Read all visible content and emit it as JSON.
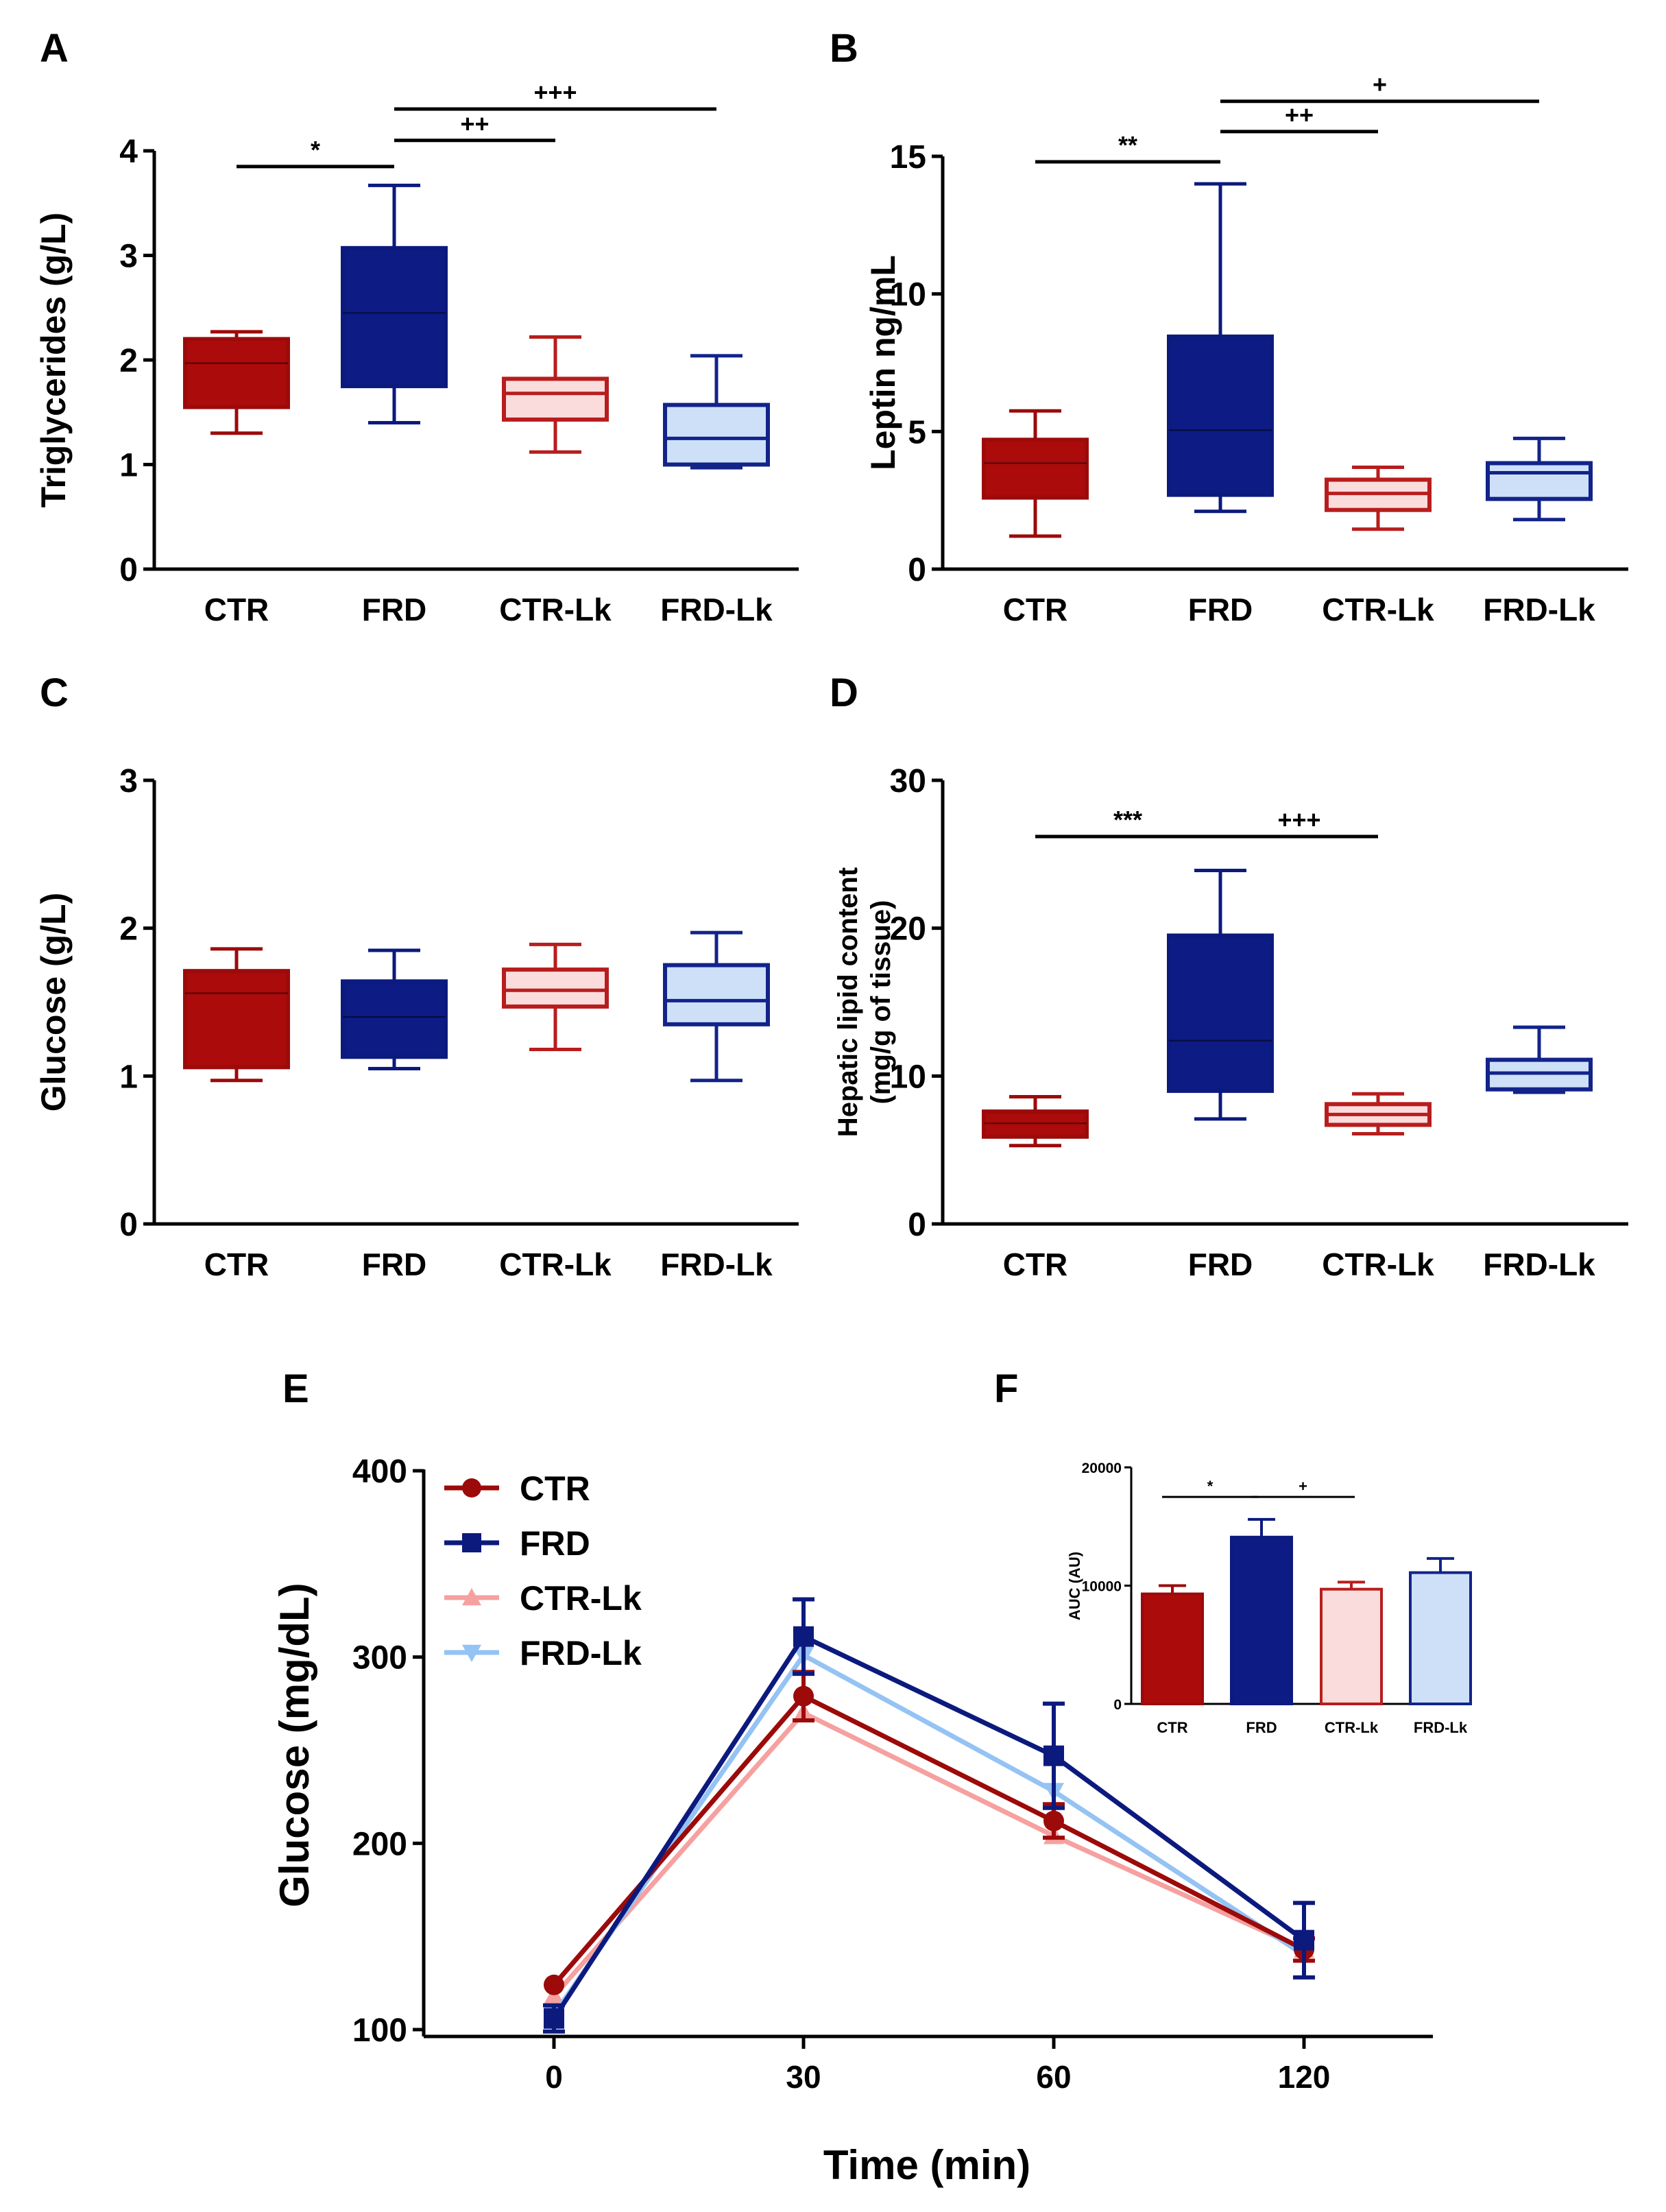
{
  "colors": {
    "ctr": "#9c0a0a",
    "ctr_fill": "#ab0b0b",
    "frd": "#0c1a7e",
    "frd_fill": "#0d1b85",
    "ctrlk": "#b81d1d",
    "ctrlk_fill": "#fbdcdc",
    "ctrlk_line": "#f6a0a0",
    "frdlk": "#12238a",
    "frdlk_fill": "#cde0f8",
    "frdlk_line": "#94c3f4",
    "axis": "#000000"
  },
  "chart_data": [
    {
      "panel": "A",
      "type": "box",
      "ylabel": "Triglycerides (g/L)",
      "ylim": [
        0,
        4
      ],
      "yticks": [
        0,
        1,
        2,
        3,
        4
      ],
      "categories": [
        "CTR",
        "FRD",
        "CTR-Lk",
        "FRD-Lk"
      ],
      "boxes": [
        {
          "min": 1.3,
          "q1": 1.55,
          "median": 1.97,
          "q3": 2.2,
          "max": 2.27
        },
        {
          "min": 1.4,
          "q1": 1.75,
          "median": 2.45,
          "q3": 3.07,
          "max": 3.67
        },
        {
          "min": 1.12,
          "q1": 1.43,
          "median": 1.68,
          "q3": 1.82,
          "max": 2.22
        },
        {
          "min": 0.97,
          "q1": 1.0,
          "median": 1.25,
          "q3": 1.57,
          "max": 2.04
        }
      ],
      "significance": [
        {
          "label": "*",
          "from": 0,
          "to": 1,
          "y": 3.85
        },
        {
          "label": "++",
          "from": 1,
          "to": 2,
          "y": 4.1
        },
        {
          "label": "+++",
          "from": 1,
          "to": 3,
          "y": 4.4
        }
      ]
    },
    {
      "panel": "B",
      "type": "box",
      "ylabel": "Leptin ng/mL",
      "ylim": [
        0,
        15
      ],
      "yticks": [
        0,
        5,
        10,
        15
      ],
      "categories": [
        "CTR",
        "FRD",
        "CTR-Lk",
        "FRD-Lk"
      ],
      "boxes": [
        {
          "min": 1.2,
          "q1": 2.6,
          "median": 3.85,
          "q3": 4.7,
          "max": 5.75
        },
        {
          "min": 2.1,
          "q1": 2.7,
          "median": 5.05,
          "q3": 8.45,
          "max": 14.0
        },
        {
          "min": 1.45,
          "q1": 2.15,
          "median": 2.75,
          "q3": 3.25,
          "max": 3.7
        },
        {
          "min": 1.8,
          "q1": 2.55,
          "median": 3.5,
          "q3": 3.85,
          "max": 4.75
        }
      ],
      "significance": [
        {
          "label": "**",
          "from": 0,
          "to": 1,
          "y": 14.8
        },
        {
          "label": "++",
          "from": 1,
          "to": 2,
          "y": 15.9
        },
        {
          "label": "+",
          "from": 1,
          "to": 3,
          "y": 17.0
        }
      ]
    },
    {
      "panel": "C",
      "type": "box",
      "ylabel": "Glucose (g/L)",
      "ylim": [
        0,
        3
      ],
      "yticks": [
        0,
        1,
        2,
        3
      ],
      "categories": [
        "CTR",
        "FRD",
        "CTR-Lk",
        "FRD-Lk"
      ],
      "boxes": [
        {
          "min": 0.97,
          "q1": 1.06,
          "median": 1.56,
          "q3": 1.71,
          "max": 1.86
        },
        {
          "min": 1.05,
          "q1": 1.13,
          "median": 1.4,
          "q3": 1.64,
          "max": 1.85
        },
        {
          "min": 1.18,
          "q1": 1.47,
          "median": 1.58,
          "q3": 1.72,
          "max": 1.89
        },
        {
          "min": 0.97,
          "q1": 1.35,
          "median": 1.51,
          "q3": 1.75,
          "max": 1.97
        }
      ],
      "significance": []
    },
    {
      "panel": "D",
      "type": "box",
      "ylabel": [
        "Hepatic lipid content",
        "(mg/g of tissue)"
      ],
      "ylim": [
        0,
        30
      ],
      "yticks": [
        0,
        10,
        20,
        30
      ],
      "categories": [
        "CTR",
        "FRD",
        "CTR-Lk",
        "FRD-Lk"
      ],
      "boxes": [
        {
          "min": 5.3,
          "q1": 5.9,
          "median": 6.8,
          "q3": 7.6,
          "max": 8.6
        },
        {
          "min": 7.1,
          "q1": 9.0,
          "median": 12.4,
          "q3": 19.5,
          "max": 23.9
        },
        {
          "min": 6.1,
          "q1": 6.7,
          "median": 7.4,
          "q3": 8.1,
          "max": 8.8
        },
        {
          "min": 8.9,
          "q1": 9.1,
          "median": 10.2,
          "q3": 11.1,
          "max": 13.3
        }
      ],
      "significance": [
        {
          "label": "***",
          "from": 0,
          "to": 1,
          "y": 26.2
        },
        {
          "label": "+++",
          "from": 1,
          "to": 2,
          "y": 26.2
        }
      ]
    },
    {
      "panel": "E",
      "type": "line",
      "xlabel": "Time (min)",
      "ylabel": "Glucose (mg/dL)",
      "x": [
        0,
        30,
        60,
        120
      ],
      "ylim": [
        100,
        400
      ],
      "yticks": [
        100,
        200,
        300,
        400
      ],
      "series": [
        {
          "name": "CTR",
          "values": [
            124,
            279,
            212,
            143
          ],
          "errors": [
            0,
            13,
            9,
            6
          ]
        },
        {
          "name": "FRD",
          "values": [
            106,
            311,
            247,
            148
          ],
          "errors": [
            7,
            20,
            28,
            20
          ]
        },
        {
          "name": "CTR-Lk",
          "values": [
            118,
            270,
            204,
            143
          ],
          "errors": [
            0,
            0,
            0,
            0
          ]
        },
        {
          "name": "FRD-Lk",
          "values": [
            108,
            301,
            228,
            140
          ],
          "errors": [
            0,
            0,
            0,
            0
          ]
        }
      ]
    },
    {
      "panel": "F",
      "type": "bar",
      "ylabel": "AUC (AU)",
      "categories": [
        "CTR",
        "FRD",
        "CTR-Lk",
        "FRD-Lk"
      ],
      "values": [
        9300,
        14100,
        9700,
        11100
      ],
      "errors": [
        700,
        1500,
        600,
        1200
      ],
      "ylim": [
        0,
        20000
      ],
      "yticks": [
        0,
        10000,
        20000
      ],
      "significance": [
        {
          "label": "*",
          "from": 0,
          "to": 1,
          "y": 17500
        },
        {
          "label": "+",
          "from": 1,
          "to": 2,
          "y": 17500
        }
      ]
    }
  ]
}
